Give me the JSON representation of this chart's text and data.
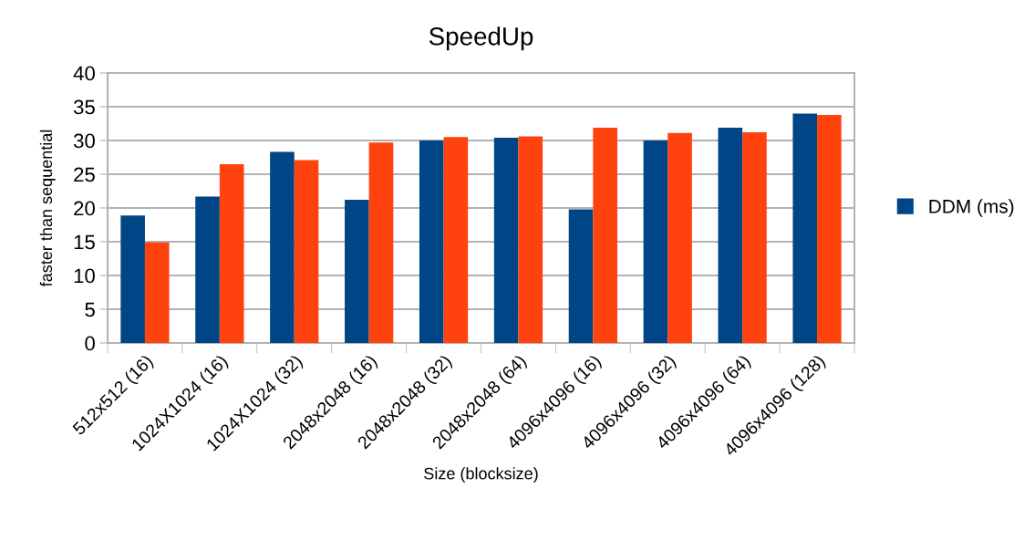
{
  "chart_data": {
    "type": "bar",
    "title": "SpeedUp",
    "xlabel": "Size (blocksize)",
    "ylabel": "faster than sequential",
    "categories": [
      "512x512 (16)",
      "1024X1024 (16)",
      "1024X1024 (32)",
      "2048x2048 (16)",
      "2048x2048 (32)",
      "2048x2048 (64)",
      "4096x4096 (16)",
      "4096x4096 (32)",
      "4096x4096 (64)",
      "4096x4096 (128)"
    ],
    "series": [
      {
        "name": "DDM (ms)",
        "color": "#004586",
        "values": [
          18.9,
          21.7,
          28.3,
          21.2,
          30.0,
          30.4,
          19.8,
          30.0,
          31.9,
          34.0
        ]
      },
      {
        "color": "#ff420e",
        "values": [
          14.9,
          26.5,
          27.1,
          29.7,
          30.5,
          30.6,
          31.9,
          31.1,
          31.2,
          33.8
        ]
      }
    ],
    "ylim": [
      0,
      40
    ],
    "yticks": [
      0,
      5,
      10,
      15,
      20,
      25,
      30,
      35,
      40
    ],
    "grid": "y",
    "legend": "right"
  }
}
